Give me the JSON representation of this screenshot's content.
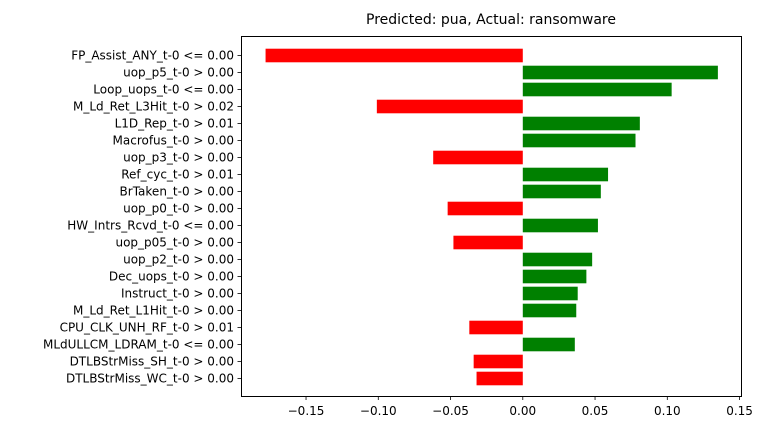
{
  "chart_data": {
    "type": "bar",
    "orientation": "horizontal",
    "title": "Predicted: pua, Actual: ransomware",
    "xlabel": "",
    "ylabel": "",
    "xlim": [
      -0.195,
      0.151
    ],
    "xticks": [
      -0.15,
      -0.1,
      -0.05,
      0.0,
      0.05,
      0.1,
      0.15
    ],
    "xtick_labels": [
      "−0.15",
      "−0.10",
      "−0.05",
      "0.00",
      "0.05",
      "0.10",
      "0.15"
    ],
    "grid": false,
    "legend": false,
    "colors": {
      "positive": "#008000",
      "negative": "#ff0000"
    },
    "categories": [
      "FP_Assist_ANY_t-0 <= 0.00",
      "uop_p5_t-0 > 0.00",
      "Loop_uops_t-0 <= 0.00",
      "M_Ld_Ret_L3Hit_t-0 > 0.02",
      "L1D_Rep_t-0 > 0.01",
      "Macrofus_t-0 > 0.00",
      "uop_p3_t-0 > 0.00",
      "Ref_cyc_t-0 > 0.01",
      "BrTaken_t-0 > 0.00",
      "uop_p0_t-0 > 0.00",
      "HW_Intrs_Rcvd_t-0 <= 0.00",
      "uop_p05_t-0 > 0.00",
      "uop_p2_t-0 > 0.00",
      "Dec_uops_t-0 > 0.00",
      "Instruct_t-0 > 0.00",
      "M_Ld_Ret_L1Hit_t-0 > 0.00",
      "CPU_CLK_UNH_RF_t-0 > 0.01",
      "MLdULLCM_LDRAM_t-0 <= 0.00",
      "DTLBStrMiss_SH_t-0 > 0.00",
      "DTLBStrMiss_WC_t-0 > 0.00"
    ],
    "values": [
      -0.178,
      0.135,
      0.103,
      -0.101,
      0.081,
      0.078,
      -0.062,
      0.059,
      0.054,
      -0.052,
      0.052,
      -0.048,
      0.048,
      0.044,
      0.038,
      0.037,
      -0.037,
      0.036,
      -0.034,
      -0.032
    ]
  }
}
